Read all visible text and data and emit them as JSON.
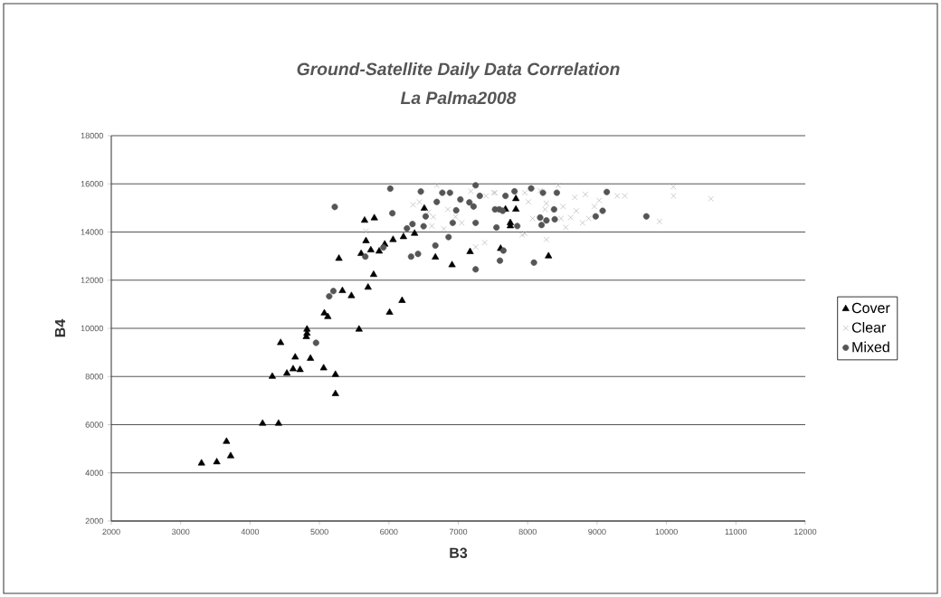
{
  "chart_data": {
    "type": "scatter",
    "title": "Ground-Satellite Daily Data Correlation",
    "subtitle": "La Palma2008",
    "xlabel": "B3",
    "ylabel": "B4",
    "xlim": [
      2000,
      12000
    ],
    "xticks": [
      2000,
      3000,
      4000,
      5000,
      6000,
      7000,
      8000,
      9000,
      10000,
      11000,
      12000
    ],
    "ylim": [
      2000,
      18000
    ],
    "yticks": [
      2000,
      4000,
      6000,
      8000,
      10000,
      12000,
      14000,
      16000,
      18000
    ],
    "grid": "y",
    "legend": "right",
    "series": [
      {
        "name": "Cover",
        "color": "#000000",
        "marker": "triangle",
        "x": [
          3300,
          3520,
          3660,
          3720,
          4180,
          4410,
          4320,
          4440,
          4530,
          4620,
          4650,
          4720,
          4820,
          4820,
          4810,
          4870,
          5060,
          5070,
          5120,
          5230,
          5230,
          5280,
          5330,
          5460,
          5570,
          5650,
          5790,
          5670,
          5600,
          5740,
          5860,
          5940,
          6060,
          6210,
          6370,
          5780,
          5700,
          6010,
          6190,
          6510,
          6670,
          6910,
          7170,
          7610,
          7830,
          7830,
          7750,
          7750,
          7680,
          8300
        ],
        "values": [
          4400,
          4450,
          5300,
          4700,
          6050,
          6050,
          8000,
          9400,
          8130,
          8310,
          8800,
          8280,
          9960,
          9790,
          9650,
          8750,
          8350,
          10630,
          10480,
          8080,
          7280,
          12900,
          11560,
          11350,
          9960,
          14480,
          14580,
          13630,
          13100,
          13250,
          13200,
          13490,
          13680,
          13800,
          13940,
          12230,
          11700,
          10660,
          11150,
          14980,
          12950,
          12630,
          13180,
          13310,
          15380,
          14940,
          14380,
          14250,
          14940,
          13000
        ]
      },
      {
        "name": "Clear",
        "color": "#b4b4b4",
        "marker": "cross",
        "x": [
          5670,
          6350,
          6440,
          6690,
          6570,
          6640,
          6620,
          6790,
          6850,
          7180,
          7400,
          7050,
          7380,
          7250,
          6960,
          7530,
          7510,
          7960,
          8010,
          7960,
          7920,
          8180,
          8270,
          8440,
          8510,
          8250,
          8070,
          8270,
          8550,
          8680,
          8830,
          8620,
          8790,
          8700,
          8880,
          8960,
          9030,
          9290,
          9400,
          9900,
          8480,
          10100,
          10100,
          10640
        ],
        "values": [
          14030,
          15130,
          15250,
          15940,
          14830,
          14630,
          14250,
          14130,
          14940,
          15690,
          15500,
          14380,
          13560,
          13380,
          14630,
          15630,
          15630,
          15630,
          15250,
          13940,
          13880,
          15720,
          15190,
          15940,
          15060,
          14940,
          14560,
          13690,
          14190,
          15440,
          15560,
          14600,
          14380,
          14880,
          14560,
          15060,
          15310,
          15500,
          15500,
          14440,
          14560,
          15880,
          15500,
          15380
        ]
      },
      {
        "name": "Mixed",
        "color": "#555555",
        "marker": "circle",
        "x": [
          5220,
          6020,
          6050,
          4950,
          5140,
          5200,
          5660,
          5920,
          6260,
          6340,
          6500,
          6320,
          6420,
          6670,
          6860,
          7250,
          6460,
          6530,
          6770,
          6880,
          6690,
          7030,
          6970,
          7250,
          6920,
          7160,
          7220,
          7250,
          7310,
          7530,
          7590,
          7640,
          7550,
          7680,
          7810,
          8050,
          8220,
          8420,
          8180,
          8200,
          8270,
          8390,
          8380,
          7850,
          7650,
          7600,
          8090,
          9140,
          9080,
          8980,
          9710
        ],
        "values": [
          15040,
          15800,
          14780,
          9400,
          11330,
          11550,
          12980,
          13360,
          14150,
          14330,
          14240,
          12980,
          13090,
          13440,
          13790,
          12450,
          15680,
          14650,
          15630,
          15630,
          15250,
          15350,
          14900,
          15940,
          14380,
          15230,
          15060,
          14380,
          15500,
          14940,
          14940,
          14880,
          14190,
          15500,
          15690,
          15810,
          15630,
          15630,
          14600,
          14290,
          14480,
          14530,
          14940,
          14250,
          13230,
          12810,
          12730,
          15660,
          14880,
          14650,
          14650
        ]
      }
    ]
  }
}
